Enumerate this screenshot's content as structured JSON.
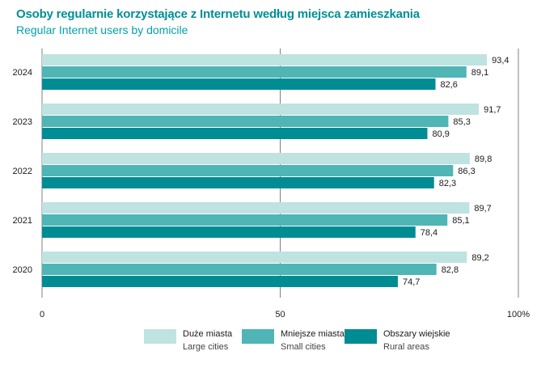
{
  "header": {
    "title": "Osoby regularnie korzystające z Internetu według miejsca zamieszkania",
    "subtitle": "Regular Internet users by domicile"
  },
  "colors": {
    "title": "#008f96",
    "subtitle": "#00a3a8",
    "large": "#bfe3e1",
    "small": "#4fb5b5",
    "rural": "#008c93",
    "grid": "#808080"
  },
  "legend": [
    {
      "pl": "Duże miasta",
      "en": "Large cities"
    },
    {
      "pl": "Mniejsze miasta",
      "en": "Small cities"
    },
    {
      "pl": "Obszary wiejskie",
      "en": "Rural areas"
    }
  ],
  "chart_data": {
    "type": "bar",
    "orientation": "horizontal",
    "categories": [
      "2024",
      "2023",
      "2022",
      "2021",
      "2020"
    ],
    "series": [
      {
        "name": "Duże miasta / Large cities",
        "values": [
          93.4,
          91.7,
          89.8,
          89.7,
          89.2
        ]
      },
      {
        "name": "Mniejsze miasta / Small cities",
        "values": [
          89.1,
          85.3,
          86.3,
          85.1,
          82.8
        ]
      },
      {
        "name": "Obszary wiejskie / Rural areas",
        "values": [
          82.6,
          80.9,
          82.3,
          78.4,
          74.7
        ]
      }
    ],
    "value_labels": [
      [
        "93,4",
        "89,1",
        "82,6"
      ],
      [
        "91,7",
        "85,3",
        "80,9"
      ],
      [
        "89,8",
        "86,3",
        "82,3"
      ],
      [
        "89,7",
        "85,1",
        "78,4"
      ],
      [
        "89,2",
        "82,8",
        "74,7"
      ]
    ],
    "xlim": [
      0,
      100
    ],
    "x_ticks": [
      0,
      50,
      100
    ],
    "x_tick_labels": [
      "0",
      "50",
      "100%"
    ],
    "grid": true,
    "legend_position": "bottom"
  }
}
